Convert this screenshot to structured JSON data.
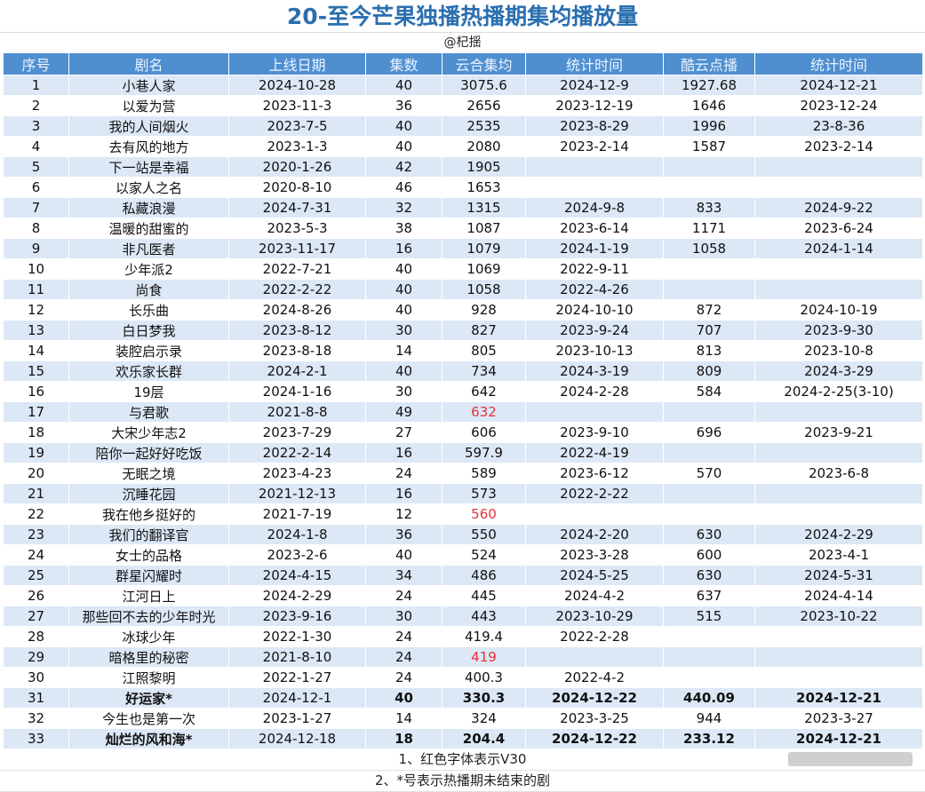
{
  "title": "20-至今芒果独播热播期集均播放量",
  "watermark": "@杞揺",
  "headers": [
    "序号",
    "剧名",
    "上线日期",
    "集数",
    "云合集均",
    "统计时间",
    "酷云点播",
    "统计时间"
  ],
  "rows": [
    {
      "no": "1",
      "name": "小巷人家",
      "date": "2024-10-28",
      "eps": "40",
      "yunhe": "3075.6",
      "stat1": "2024-12-9",
      "kuyun": "1927.68",
      "stat2": "2024-12-21"
    },
    {
      "no": "2",
      "name": "以爱为营",
      "date": "2023-11-3",
      "eps": "36",
      "yunhe": "2656",
      "stat1": "2023-12-19",
      "kuyun": "1646",
      "stat2": "2023-12-24"
    },
    {
      "no": "3",
      "name": "我的人间烟火",
      "date": "2023-7-5",
      "eps": "40",
      "yunhe": "2535",
      "stat1": "2023-8-29",
      "kuyun": "1996",
      "stat2": "23-8-36"
    },
    {
      "no": "4",
      "name": "去有风的地方",
      "date": "2023-1-3",
      "eps": "40",
      "yunhe": "2080",
      "stat1": "2023-2-14",
      "kuyun": "1587",
      "stat2": "2023-2-14"
    },
    {
      "no": "5",
      "name": "下一站是幸福",
      "date": "2020-1-26",
      "eps": "42",
      "yunhe": "1905",
      "stat1": "",
      "kuyun": "",
      "stat2": ""
    },
    {
      "no": "6",
      "name": "以家人之名",
      "date": "2020-8-10",
      "eps": "46",
      "yunhe": "1653",
      "stat1": "",
      "kuyun": "",
      "stat2": ""
    },
    {
      "no": "7",
      "name": "私藏浪漫",
      "date": "2024-7-31",
      "eps": "32",
      "yunhe": "1315",
      "stat1": "2024-9-8",
      "kuyun": "833",
      "stat2": "2024-9-22"
    },
    {
      "no": "8",
      "name": "温暖的甜蜜的",
      "date": "2023-5-3",
      "eps": "38",
      "yunhe": "1087",
      "stat1": "2023-6-14",
      "kuyun": "1171",
      "stat2": "2023-6-24"
    },
    {
      "no": "9",
      "name": "非凡医者",
      "date": "2023-11-17",
      "eps": "16",
      "yunhe": "1079",
      "stat1": "2024-1-19",
      "kuyun": "1058",
      "stat2": "2024-1-14"
    },
    {
      "no": "10",
      "name": "少年派2",
      "date": "2022-7-21",
      "eps": "40",
      "yunhe": "1069",
      "stat1": "2022-9-11",
      "kuyun": "",
      "stat2": ""
    },
    {
      "no": "11",
      "name": "尚食",
      "date": "2022-2-22",
      "eps": "40",
      "yunhe": "1058",
      "stat1": "2022-4-26",
      "kuyun": "",
      "stat2": ""
    },
    {
      "no": "12",
      "name": "长乐曲",
      "date": "2024-8-26",
      "eps": "40",
      "yunhe": "928",
      "stat1": "2024-10-10",
      "kuyun": "872",
      "stat2": "2024-10-19"
    },
    {
      "no": "13",
      "name": "白日梦我",
      "date": "2023-8-12",
      "eps": "30",
      "yunhe": "827",
      "stat1": "2023-9-24",
      "kuyun": "707",
      "stat2": "2023-9-30"
    },
    {
      "no": "14",
      "name": "装腔启示录",
      "date": "2023-8-18",
      "eps": "14",
      "yunhe": "805",
      "stat1": "2023-10-13",
      "kuyun": "813",
      "stat2": "2023-10-8"
    },
    {
      "no": "15",
      "name": "欢乐家长群",
      "date": "2024-2-1",
      "eps": "40",
      "yunhe": "734",
      "stat1": "2024-3-19",
      "kuyun": "809",
      "stat2": "2024-3-29"
    },
    {
      "no": "16",
      "name": "19层",
      "date": "2024-1-16",
      "eps": "30",
      "yunhe": "642",
      "stat1": "2024-2-28",
      "kuyun": "584",
      "stat2": "2024-2-25(3-10)"
    },
    {
      "no": "17",
      "name": "与君歌",
      "date": "2021-8-8",
      "eps": "49",
      "yunhe": "632",
      "stat1": "",
      "kuyun": "",
      "stat2": "",
      "red": true
    },
    {
      "no": "18",
      "name": "大宋少年志2",
      "date": "2023-7-29",
      "eps": "27",
      "yunhe": "606",
      "stat1": "2023-9-10",
      "kuyun": "696",
      "stat2": "2023-9-21"
    },
    {
      "no": "19",
      "name": "陪你一起好好吃饭",
      "date": "2022-2-14",
      "eps": "16",
      "yunhe": "597.9",
      "stat1": "2022-4-19",
      "kuyun": "",
      "stat2": ""
    },
    {
      "no": "20",
      "name": "无眠之境",
      "date": "2023-4-23",
      "eps": "24",
      "yunhe": "589",
      "stat1": "2023-6-12",
      "kuyun": "570",
      "stat2": "2023-6-8"
    },
    {
      "no": "21",
      "name": "沉睡花园",
      "date": "2021-12-13",
      "eps": "16",
      "yunhe": "573",
      "stat1": "2022-2-22",
      "kuyun": "",
      "stat2": ""
    },
    {
      "no": "22",
      "name": "我在他乡挺好的",
      "date": "2021-7-19",
      "eps": "12",
      "yunhe": "560",
      "stat1": "",
      "kuyun": "",
      "stat2": "",
      "red": true
    },
    {
      "no": "23",
      "name": "我们的翻译官",
      "date": "2024-1-8",
      "eps": "36",
      "yunhe": "550",
      "stat1": "2024-2-20",
      "kuyun": "630",
      "stat2": "2024-2-29"
    },
    {
      "no": "24",
      "name": "女士的品格",
      "date": "2023-2-6",
      "eps": "40",
      "yunhe": "524",
      "stat1": "2023-3-28",
      "kuyun": "600",
      "stat2": "2023-4-1"
    },
    {
      "no": "25",
      "name": "群星闪耀时",
      "date": "2024-4-15",
      "eps": "34",
      "yunhe": "486",
      "stat1": "2024-5-25",
      "kuyun": "630",
      "stat2": "2024-5-31"
    },
    {
      "no": "26",
      "name": "江河日上",
      "date": "2024-2-29",
      "eps": "24",
      "yunhe": "445",
      "stat1": "2024-4-2",
      "kuyun": "637",
      "stat2": "2024-4-14"
    },
    {
      "no": "27",
      "name": "那些回不去的少年时光",
      "date": "2023-9-16",
      "eps": "30",
      "yunhe": "443",
      "stat1": "2023-10-29",
      "kuyun": "515",
      "stat2": "2023-10-22"
    },
    {
      "no": "28",
      "name": "冰球少年",
      "date": "2022-1-30",
      "eps": "24",
      "yunhe": "419.4",
      "stat1": "2022-2-28",
      "kuyun": "",
      "stat2": ""
    },
    {
      "no": "29",
      "name": "暗格里的秘密",
      "date": "2021-8-10",
      "eps": "24",
      "yunhe": "419",
      "stat1": "",
      "kuyun": "",
      "stat2": "",
      "red": true
    },
    {
      "no": "30",
      "name": "江照黎明",
      "date": "2022-1-27",
      "eps": "24",
      "yunhe": "400.3",
      "stat1": "2022-4-2",
      "kuyun": "",
      "stat2": ""
    },
    {
      "no": "31",
      "name": "好运家*",
      "date": "2024-12-1",
      "eps": "40",
      "yunhe": "330.3",
      "stat1": "2024-12-22",
      "kuyun": "440.09",
      "stat2": "2024-12-21",
      "bold": true
    },
    {
      "no": "32",
      "name": "今生也是第一次",
      "date": "2023-1-27",
      "eps": "14",
      "yunhe": "324",
      "stat1": "2023-3-25",
      "kuyun": "944",
      "stat2": "2023-3-27"
    },
    {
      "no": "33",
      "name": "灿烂的风和海*",
      "date": "2024-12-18",
      "eps": "18",
      "yunhe": "204.4",
      "stat1": "2024-12-22",
      "kuyun": "233.12",
      "stat2": "2024-12-21",
      "bold": true
    }
  ],
  "notes": [
    "1、红色字体表示V30",
    "2、*号表示热播期未结束的剧"
  ]
}
